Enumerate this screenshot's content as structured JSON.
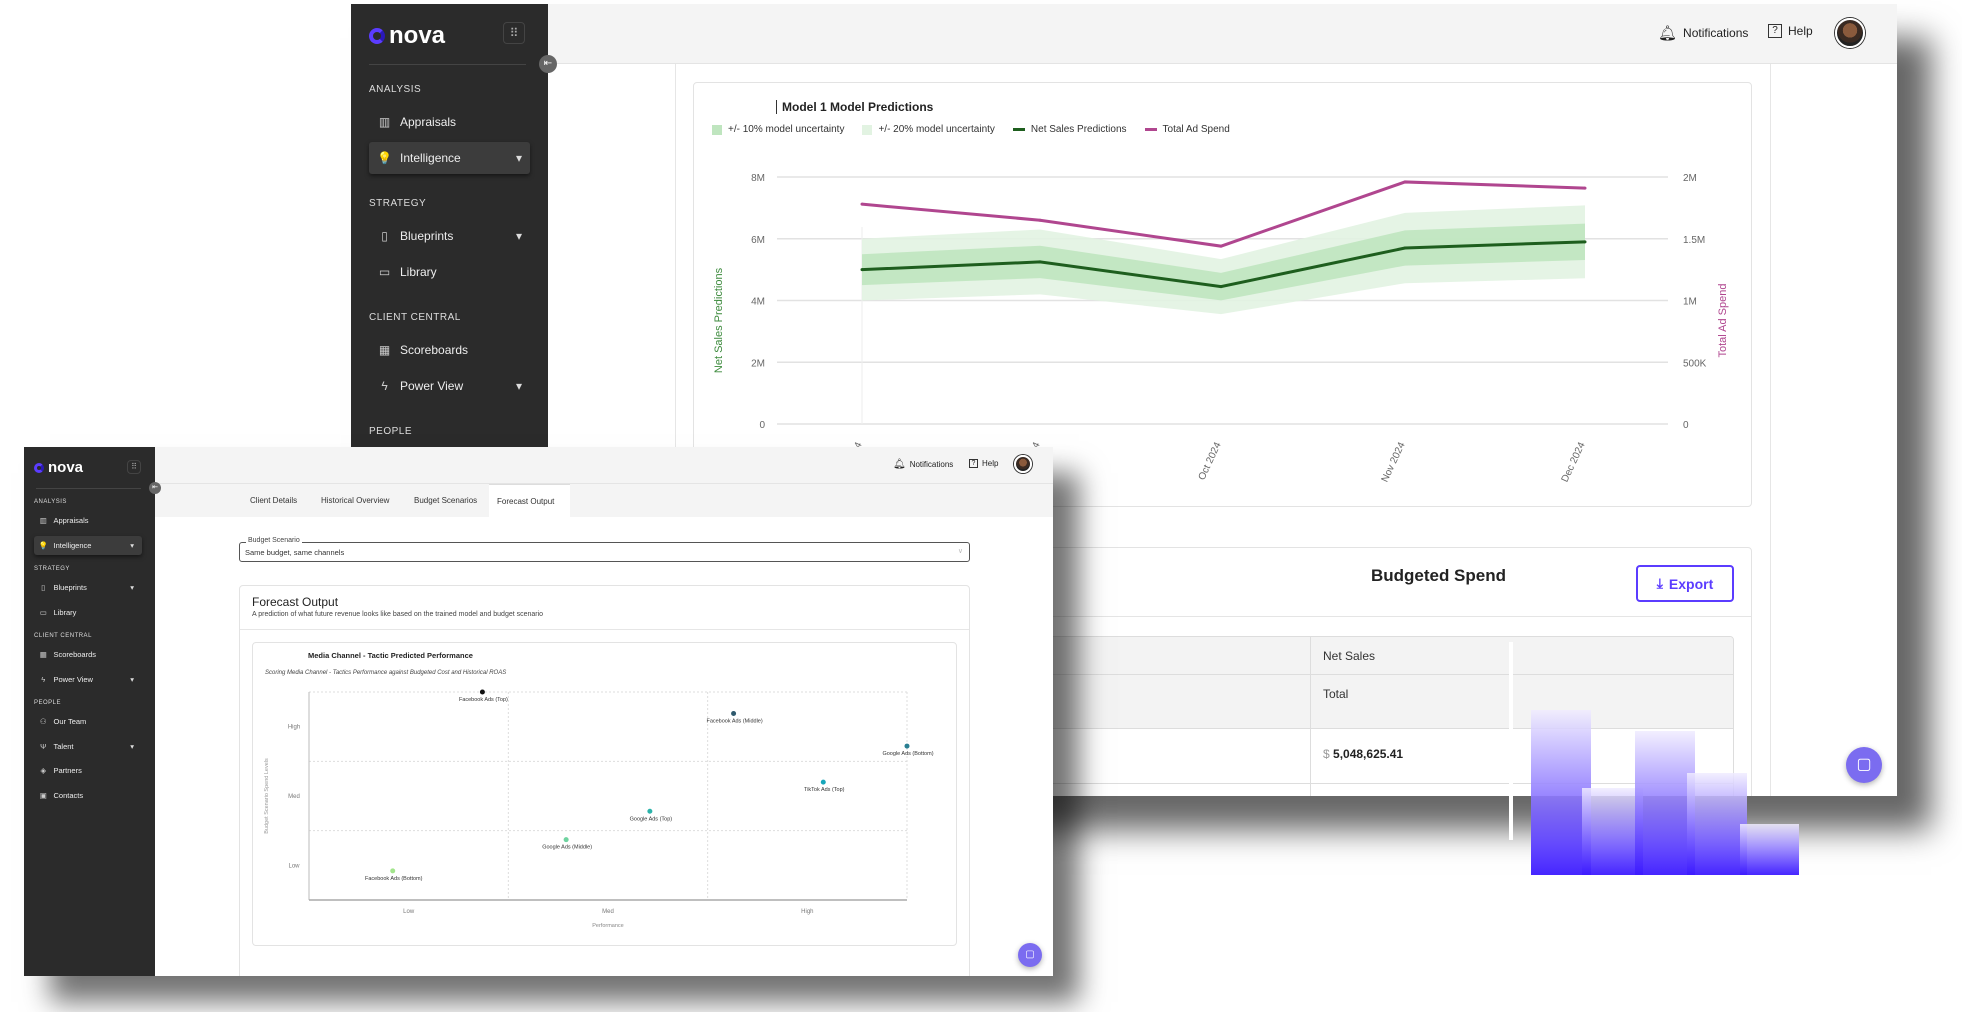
{
  "brand": "nova",
  "header": {
    "notifications": "Notifications",
    "help": "Help"
  },
  "nav": [
    {
      "type": "section",
      "label": "ANALYSIS"
    },
    {
      "type": "item",
      "label": "Appraisals",
      "icon": "chart-icon",
      "glyph": "▥"
    },
    {
      "type": "item",
      "label": "Intelligence",
      "icon": "lightbulb-icon",
      "glyph": "💡",
      "active": true,
      "caret": true
    },
    {
      "type": "section",
      "label": "STRATEGY"
    },
    {
      "type": "item",
      "label": "Blueprints",
      "icon": "map-icon",
      "glyph": "▯",
      "caret": true
    },
    {
      "type": "item",
      "label": "Library",
      "icon": "book-icon",
      "glyph": "▭"
    },
    {
      "type": "section",
      "label": "CLIENT CENTRAL"
    },
    {
      "type": "item",
      "label": "Scoreboards",
      "icon": "table-icon",
      "glyph": "▦"
    },
    {
      "type": "item",
      "label": "Power View",
      "icon": "lightning-icon",
      "glyph": "ϟ",
      "caret": true
    },
    {
      "type": "section",
      "label": "PEOPLE"
    },
    {
      "type": "item",
      "label": "Our Team",
      "icon": "team-icon",
      "glyph": "⚇"
    },
    {
      "type": "item",
      "label": "Talent",
      "icon": "talent-icon",
      "glyph": "Ψ",
      "caret": true
    },
    {
      "type": "item",
      "label": "Partners",
      "icon": "handshake-icon",
      "glyph": "◈"
    },
    {
      "type": "item",
      "label": "Contacts",
      "icon": "contacts-icon",
      "glyph": "▣"
    }
  ],
  "back": {
    "predictions_chart": {
      "chart_data": {
        "type": "line",
        "title": "Model 1 Model Predictions",
        "categories": [
          "Aug 2024",
          "Sep 2024",
          "Oct 2024",
          "Nov 2024",
          "Dec 2024"
        ],
        "legend": [
          "+/- 10% model uncertainty",
          "+/- 20% model uncertainty",
          "Net Sales Predictions",
          "Total Ad Spend"
        ],
        "ylabel": "Net Sales Predictions",
        "y2label": "Total Ad Spend",
        "ylim": [
          0,
          8000000
        ],
        "y2lim": [
          0,
          2000000
        ],
        "yticks": [
          "0",
          "2M",
          "4M",
          "6M",
          "8M"
        ],
        "y2ticks": [
          "0",
          "500K",
          "1M",
          "1.5M",
          "2M"
        ],
        "grid": true,
        "legend_position": "top-left",
        "series": [
          {
            "name": "Net Sales Predictions",
            "axis": "left",
            "color": "#1e5e1e",
            "values": [
              5000000,
              5250000,
              4450000,
              5700000,
              5900000
            ]
          },
          {
            "name": "Total Ad Spend",
            "axis": "right",
            "color": "#b0468f",
            "values": [
              1780000,
              1650000,
              1440000,
              1960000,
              1910000
            ]
          }
        ],
        "bands": [
          {
            "name": "+/- 20% model uncertainty",
            "fraction": 0.2,
            "color": "#e2f3e2"
          },
          {
            "name": "+/- 10% model uncertainty",
            "fraction": 0.1,
            "color": "#bfe5bf"
          }
        ]
      }
    },
    "spend_card": {
      "title": "Budgeted Spend",
      "export_label": "Export",
      "table": {
        "header": "Net Sales",
        "subheader": "Total",
        "value_currency": "$",
        "value": "5,048,625.41"
      }
    }
  },
  "front": {
    "tabs": [
      "Client Details",
      "Historical Overview",
      "Budget Scenarios",
      "Forecast Output"
    ],
    "active_tab": "Forecast Output",
    "budget_scenario": {
      "label": "Budget Scenario",
      "value": "Same budget, same channels"
    },
    "forecast": {
      "title": "Forecast Output",
      "subtitle": "A prediction of what future revenue looks like based on the trained model and budget scenario"
    },
    "scatter_chart": {
      "chart_data": {
        "type": "scatter",
        "title": "Media Channel - Tactic Predicted Performance",
        "subtitle": "Scoring Media Channel - Tactics Performance against Budgeted Cost and Historical ROAS",
        "xlabel": "Performance",
        "ylabel": "Budget Scenario Spend Levels",
        "xticks": [
          "Low",
          "Med",
          "High"
        ],
        "yticks": [
          "Low",
          "Med",
          "High"
        ],
        "xlim": [
          0,
          3
        ],
        "ylim": [
          0,
          3
        ],
        "grid": true,
        "points": [
          {
            "label": "Facebook Ads (Top)",
            "x": 0.87,
            "y": 3.0,
            "color": "#111111"
          },
          {
            "label": "Facebook Ads (Middle)",
            "x": 2.13,
            "y": 2.69,
            "color": "#2f5a6e"
          },
          {
            "label": "Google Ads (Bottom)",
            "x": 3.0,
            "y": 2.22,
            "color": "#2a7f92"
          },
          {
            "label": "TikTok Ads (Top)",
            "x": 2.58,
            "y": 1.7,
            "color": "#17a6ba"
          },
          {
            "label": "Google Ads (Top)",
            "x": 1.71,
            "y": 1.28,
            "color": "#2bb3aa"
          },
          {
            "label": "Google Ads (Middle)",
            "x": 1.29,
            "y": 0.87,
            "color": "#6fd3a0"
          },
          {
            "label": "Facebook Ads (Bottom)",
            "x": 0.42,
            "y": 0.42,
            "color": "#a3e58d"
          }
        ]
      }
    }
  },
  "colors": {
    "accent": "#5b3cff",
    "sidebar": "#2b2b2b",
    "chat": "#7b6cf0"
  }
}
